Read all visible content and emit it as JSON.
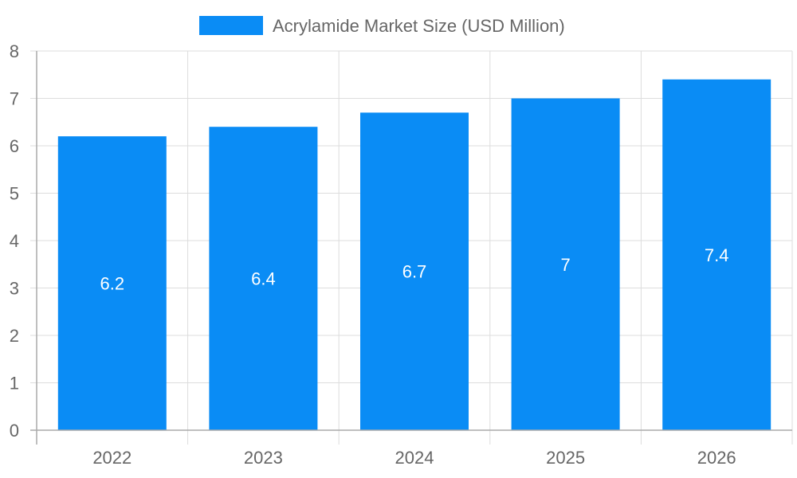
{
  "chart_data": {
    "type": "bar",
    "categories": [
      "2022",
      "2023",
      "2024",
      "2025",
      "2026"
    ],
    "series": [
      {
        "name": "Acrylamide Market Size (USD Million)",
        "values": [
          6.2,
          6.4,
          6.7,
          7,
          7.4
        ]
      }
    ],
    "ylim": [
      0,
      8
    ],
    "yticks": [
      0,
      1,
      2,
      3,
      4,
      5,
      6,
      7,
      8
    ],
    "grid": true,
    "legend_position": "top-center",
    "data_labels": [
      "6.2",
      "6.4",
      "6.7",
      "7",
      "7.4"
    ],
    "colors": {
      "bar": "#0a8cf5",
      "grid": "#dddddd",
      "axis": "#aaaaaa",
      "text": "#666666"
    }
  }
}
